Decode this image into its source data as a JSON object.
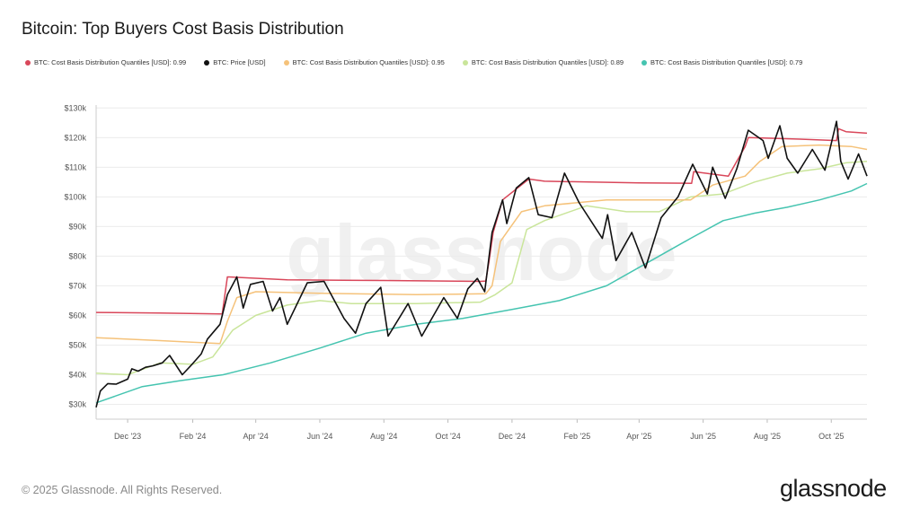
{
  "title": "Bitcoin: Top Buyers Cost Basis Distribution",
  "footer": "© 2025 Glassnode. All Rights Reserved.",
  "logo": "glassnode",
  "watermark": "glassnode",
  "colors": {
    "q099": "#d9475a",
    "price": "#111111",
    "q095": "#f5c27a",
    "q089": "#c9e59a",
    "q079": "#45c4b0",
    "grid": "#ececec",
    "axis_text": "#555555"
  },
  "chart_data": {
    "type": "line",
    "title": "Bitcoin: Top Buyers Cost Basis Distribution",
    "x_ticks": [
      "Dec '23",
      "Feb '24",
      "Apr '24",
      "Jun '24",
      "Aug '24",
      "Oct '24",
      "Dec '24",
      "Feb '25",
      "Apr '25",
      "Jun '25",
      "Aug '25",
      "Oct '25"
    ],
    "x_range": [
      "2023-11-01",
      "2025-11-04"
    ],
    "y_ticks": [
      "$30k",
      "$40k",
      "$50k",
      "$60k",
      "$70k",
      "$80k",
      "$90k",
      "$100k",
      "$110k",
      "$120k",
      "$130k"
    ],
    "ylim": [
      25000,
      131000
    ],
    "legend_position": "top",
    "grid": true,
    "series": [
      {
        "name": "BTC: Cost Basis Distribution Quantiles [USD]: 0.99",
        "color_key": "q099",
        "points": [
          [
            "2023-11-01",
            61000
          ],
          [
            "2024-01-01",
            60800
          ],
          [
            "2024-02-27",
            60500
          ],
          [
            "2024-02-29",
            60500
          ],
          [
            "2024-03-05",
            73000
          ],
          [
            "2024-05-01",
            72000
          ],
          [
            "2024-08-01",
            71800
          ],
          [
            "2024-11-01",
            71500
          ],
          [
            "2024-11-06",
            71600
          ],
          [
            "2024-11-09",
            78000
          ],
          [
            "2024-11-13",
            88000
          ],
          [
            "2024-11-22",
            99000
          ],
          [
            "2024-12-17",
            106000
          ],
          [
            "2025-01-01",
            105300
          ],
          [
            "2025-04-01",
            104700
          ],
          [
            "2025-05-21",
            104600
          ],
          [
            "2025-05-23",
            108500
          ],
          [
            "2025-06-25",
            107000
          ],
          [
            "2025-07-11",
            117000
          ],
          [
            "2025-07-14",
            120000
          ],
          [
            "2025-09-01",
            119500
          ],
          [
            "2025-10-06",
            119000
          ],
          [
            "2025-10-08",
            123000
          ],
          [
            "2025-10-15",
            122000
          ],
          [
            "2025-11-04",
            121500
          ]
        ]
      },
      {
        "name": "BTC: Price [USD]",
        "color_key": "price",
        "points": [
          [
            "2023-11-01",
            29000
          ],
          [
            "2023-11-05",
            34500
          ],
          [
            "2023-11-12",
            37000
          ],
          [
            "2023-11-20",
            36800
          ],
          [
            "2023-12-01",
            38500
          ],
          [
            "2023-12-05",
            42000
          ],
          [
            "2023-12-11",
            41200
          ],
          [
            "2023-12-18",
            42500
          ],
          [
            "2023-12-25",
            43000
          ],
          [
            "2024-01-03",
            44000
          ],
          [
            "2024-01-10",
            46500
          ],
          [
            "2024-01-22",
            40000
          ],
          [
            "2024-01-30",
            43000
          ],
          [
            "2024-02-09",
            47000
          ],
          [
            "2024-02-15",
            52000
          ],
          [
            "2024-02-27",
            57000
          ],
          [
            "2024-03-05",
            67000
          ],
          [
            "2024-03-14",
            73000
          ],
          [
            "2024-03-20",
            62500
          ],
          [
            "2024-03-27",
            70500
          ],
          [
            "2024-04-08",
            71500
          ],
          [
            "2024-04-17",
            61500
          ],
          [
            "2024-04-24",
            66000
          ],
          [
            "2024-05-01",
            57000
          ],
          [
            "2024-05-20",
            71000
          ],
          [
            "2024-06-05",
            71500
          ],
          [
            "2024-06-24",
            59000
          ],
          [
            "2024-07-05",
            54000
          ],
          [
            "2024-07-15",
            64000
          ],
          [
            "2024-07-29",
            69500
          ],
          [
            "2024-08-05",
            53000
          ],
          [
            "2024-08-24",
            64000
          ],
          [
            "2024-09-06",
            53000
          ],
          [
            "2024-09-27",
            66000
          ],
          [
            "2024-10-10",
            59000
          ],
          [
            "2024-10-20",
            69000
          ],
          [
            "2024-10-29",
            72500
          ],
          [
            "2024-11-05",
            68000
          ],
          [
            "2024-11-12",
            88000
          ],
          [
            "2024-11-22",
            99000
          ],
          [
            "2024-11-26",
            91000
          ],
          [
            "2024-12-05",
            103000
          ],
          [
            "2024-12-17",
            106500
          ],
          [
            "2024-12-26",
            94000
          ],
          [
            "2025-01-08",
            93000
          ],
          [
            "2025-01-20",
            108000
          ],
          [
            "2025-02-03",
            98000
          ],
          [
            "2025-02-25",
            86000
          ],
          [
            "2025-03-02",
            94000
          ],
          [
            "2025-03-10",
            78500
          ],
          [
            "2025-03-25",
            88000
          ],
          [
            "2025-04-07",
            76000
          ],
          [
            "2025-04-22",
            93000
          ],
          [
            "2025-05-08",
            100000
          ],
          [
            "2025-05-22",
            111000
          ],
          [
            "2025-06-05",
            101000
          ],
          [
            "2025-06-10",
            110000
          ],
          [
            "2025-06-22",
            99500
          ],
          [
            "2025-07-03",
            109500
          ],
          [
            "2025-07-14",
            122500
          ],
          [
            "2025-07-28",
            119000
          ],
          [
            "2025-08-02",
            113000
          ],
          [
            "2025-08-13",
            124000
          ],
          [
            "2025-08-20",
            113000
          ],
          [
            "2025-08-30",
            108000
          ],
          [
            "2025-09-13",
            116000
          ],
          [
            "2025-09-25",
            109000
          ],
          [
            "2025-10-06",
            125500
          ],
          [
            "2025-10-10",
            112000
          ],
          [
            "2025-10-17",
            106000
          ],
          [
            "2025-10-27",
            114500
          ],
          [
            "2025-11-04",
            107000
          ]
        ]
      },
      {
        "name": "BTC: Cost Basis Distribution Quantiles [USD]: 0.95",
        "color_key": "q095",
        "points": [
          [
            "2023-11-01",
            52500
          ],
          [
            "2024-01-01",
            51500
          ],
          [
            "2024-02-27",
            50500
          ],
          [
            "2024-03-05",
            58000
          ],
          [
            "2024-03-14",
            66000
          ],
          [
            "2024-04-01",
            68000
          ],
          [
            "2024-06-01",
            67500
          ],
          [
            "2024-09-01",
            67000
          ],
          [
            "2024-11-06",
            67300
          ],
          [
            "2024-11-12",
            70000
          ],
          [
            "2024-11-20",
            85000
          ],
          [
            "2024-12-10",
            95000
          ],
          [
            "2025-01-01",
            97000
          ],
          [
            "2025-03-01",
            99000
          ],
          [
            "2025-05-20",
            99000
          ],
          [
            "2025-06-10",
            104000
          ],
          [
            "2025-07-11",
            107000
          ],
          [
            "2025-07-25",
            112000
          ],
          [
            "2025-08-15",
            117000
          ],
          [
            "2025-09-20",
            117500
          ],
          [
            "2025-10-20",
            117000
          ],
          [
            "2025-11-04",
            116000
          ]
        ]
      },
      {
        "name": "BTC: Cost Basis Distribution Quantiles [USD]: 0.89",
        "color_key": "q089",
        "points": [
          [
            "2023-11-01",
            40500
          ],
          [
            "2023-12-01",
            40000
          ],
          [
            "2024-01-01",
            44000
          ],
          [
            "2024-02-01",
            43500
          ],
          [
            "2024-02-20",
            46000
          ],
          [
            "2024-03-10",
            55000
          ],
          [
            "2024-04-01",
            60000
          ],
          [
            "2024-05-01",
            63500
          ],
          [
            "2024-06-01",
            65000
          ],
          [
            "2024-07-01",
            64000
          ],
          [
            "2024-09-01",
            64000
          ],
          [
            "2024-11-01",
            64500
          ],
          [
            "2024-11-15",
            67000
          ],
          [
            "2024-12-01",
            71000
          ],
          [
            "2024-12-15",
            89000
          ],
          [
            "2025-01-01",
            92000
          ],
          [
            "2025-02-10",
            97000
          ],
          [
            "2025-03-20",
            95000
          ],
          [
            "2025-04-20",
            95000
          ],
          [
            "2025-05-20",
            100000
          ],
          [
            "2025-06-20",
            101000
          ],
          [
            "2025-07-20",
            105000
          ],
          [
            "2025-08-20",
            108000
          ],
          [
            "2025-09-20",
            109500
          ],
          [
            "2025-10-15",
            111500
          ],
          [
            "2025-11-04",
            112000
          ]
        ]
      },
      {
        "name": "BTC: Cost Basis Distribution Quantiles [USD]: 0.79",
        "color_key": "q079",
        "points": [
          [
            "2023-11-01",
            30500
          ],
          [
            "2023-12-15",
            36000
          ],
          [
            "2024-01-20",
            38000
          ],
          [
            "2024-03-01",
            40000
          ],
          [
            "2024-04-15",
            44000
          ],
          [
            "2024-06-01",
            49000
          ],
          [
            "2024-07-15",
            54000
          ],
          [
            "2024-09-01",
            57000
          ],
          [
            "2024-10-15",
            59000
          ],
          [
            "2024-12-01",
            62000
          ],
          [
            "2025-01-15",
            65000
          ],
          [
            "2025-03-01",
            70000
          ],
          [
            "2025-04-15",
            79000
          ],
          [
            "2025-05-20",
            86000
          ],
          [
            "2025-06-20",
            92000
          ],
          [
            "2025-07-20",
            94500
          ],
          [
            "2025-08-20",
            96500
          ],
          [
            "2025-09-20",
            99000
          ],
          [
            "2025-10-20",
            102000
          ],
          [
            "2025-11-04",
            104500
          ]
        ]
      }
    ]
  }
}
